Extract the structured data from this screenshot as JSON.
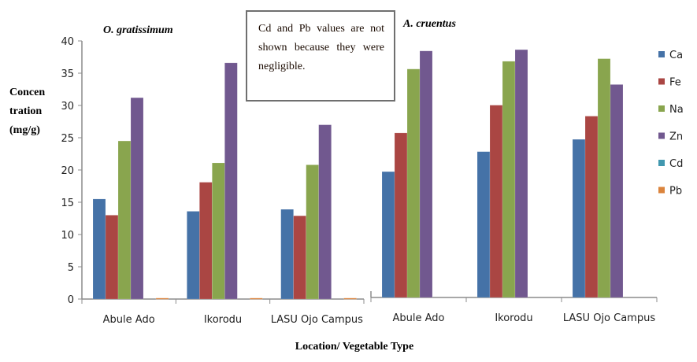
{
  "chart_data": {
    "type": "bar",
    "ylabel": "Concentration (mg/g)",
    "ylabel_lines": [
      "Concen",
      "tration",
      "(mg/g)"
    ],
    "xlabel": "Location/ Vegetable Type",
    "ylim": [
      0,
      40
    ],
    "yticks": [
      0,
      5,
      10,
      15,
      20,
      25,
      30,
      35,
      40
    ],
    "grid": false,
    "legend_position": "right",
    "annotation": "Cd and Pb values are not shown because they were negligible.",
    "series_meta": [
      {
        "name": "Ca",
        "color": "#4572a7"
      },
      {
        "name": "Fe",
        "color": "#aa4643"
      },
      {
        "name": "Na",
        "color": "#89a54e"
      },
      {
        "name": "Zn",
        "color": "#71588f"
      },
      {
        "name": "Cd",
        "color": "#4198af"
      },
      {
        "name": "Pb",
        "color": "#db843d"
      }
    ],
    "panels": [
      {
        "title": "O. gratissimum",
        "categories": [
          "Abule Ado",
          "Ikorodu",
          "LASU Ojo Campus"
        ],
        "series": [
          {
            "name": "Ca",
            "values": [
              15.5,
              13.6,
              13.9
            ]
          },
          {
            "name": "Fe",
            "values": [
              13.0,
              18.1,
              12.9
            ]
          },
          {
            "name": "Na",
            "values": [
              24.5,
              21.1,
              20.8
            ]
          },
          {
            "name": "Zn",
            "values": [
              31.2,
              36.6,
              27.0
            ]
          },
          {
            "name": "Cd",
            "values": [
              0,
              0,
              0
            ]
          },
          {
            "name": "Pb",
            "values": [
              0.15,
              0.15,
              0.15
            ]
          }
        ]
      },
      {
        "title": "A. cruentus",
        "categories": [
          "Abule Ado",
          "Ikorodu",
          "LASU Ojo Campus"
        ],
        "series": [
          {
            "name": "Ca",
            "values": [
              19.5,
              22.6,
              24.5
            ]
          },
          {
            "name": "Fe",
            "values": [
              25.5,
              29.8,
              28.1
            ]
          },
          {
            "name": "Na",
            "values": [
              35.4,
              36.6,
              37.0
            ]
          },
          {
            "name": "Zn",
            "values": [
              38.2,
              38.4,
              33.0
            ]
          },
          {
            "name": "Cd",
            "values": [
              0,
              0,
              0
            ]
          },
          {
            "name": "Pb",
            "values": [
              0,
              0,
              0
            ]
          }
        ]
      }
    ]
  }
}
